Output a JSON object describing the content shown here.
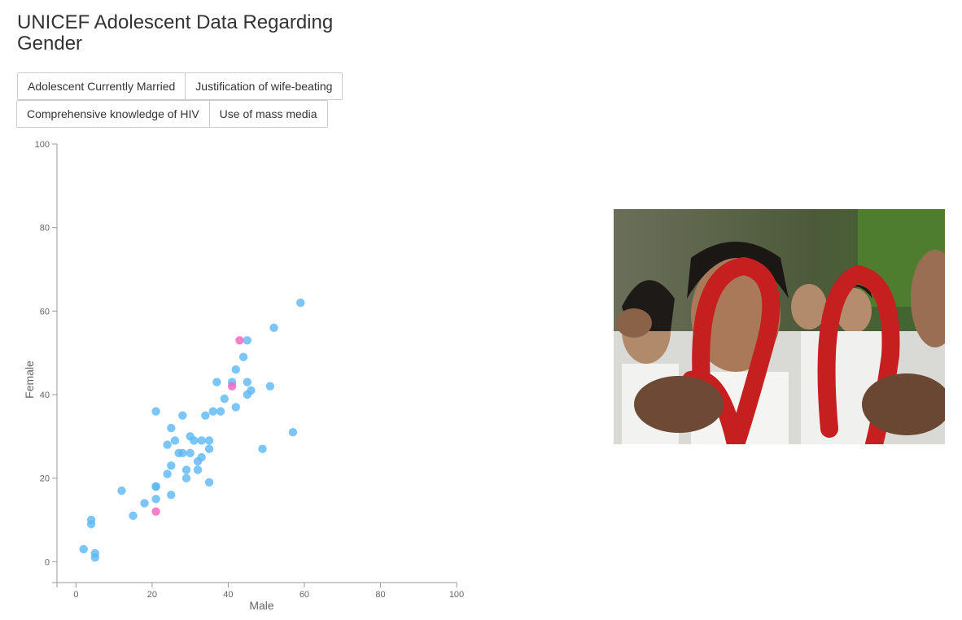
{
  "page": {
    "title": "UNICEF Adolescent Data Regarding Gender"
  },
  "buttons": [
    {
      "label": "Adolescent Currently Married"
    },
    {
      "label": "Justification of wife-beating"
    },
    {
      "label": "Comprehensive knowledge of HIV"
    },
    {
      "label": "Use of mass media"
    }
  ],
  "chart_data": {
    "type": "scatter",
    "xlabel": "Male",
    "ylabel": "Female",
    "xlim": [
      -5,
      100
    ],
    "ylim": [
      -5,
      100
    ],
    "xticks": [
      0,
      20,
      40,
      60,
      80,
      100
    ],
    "yticks": [
      0,
      20,
      40,
      60,
      80,
      100
    ],
    "grid": false,
    "colors": {
      "default": "#5bb8f5",
      "highlight": "#f25fbf",
      "axis": "#999999",
      "tick_text": "#666666"
    },
    "series": [
      {
        "color": "#5bb8f5",
        "points": [
          [
            2,
            3
          ],
          [
            4,
            9
          ],
          [
            4,
            10
          ],
          [
            5,
            2
          ],
          [
            5,
            1
          ],
          [
            12,
            17
          ],
          [
            15,
            11
          ],
          [
            18,
            14
          ],
          [
            21,
            18
          ],
          [
            21,
            18
          ],
          [
            21,
            15
          ],
          [
            21,
            36
          ],
          [
            24,
            28
          ],
          [
            24,
            21
          ],
          [
            25,
            23
          ],
          [
            25,
            32
          ],
          [
            25,
            16
          ],
          [
            26,
            29
          ],
          [
            27,
            26
          ],
          [
            28,
            26
          ],
          [
            28,
            35
          ],
          [
            29,
            22
          ],
          [
            29,
            20
          ],
          [
            30,
            30
          ],
          [
            30,
            26
          ],
          [
            31,
            29
          ],
          [
            32,
            22
          ],
          [
            32,
            24
          ],
          [
            33,
            25
          ],
          [
            33,
            29
          ],
          [
            34,
            35
          ],
          [
            35,
            29
          ],
          [
            35,
            27
          ],
          [
            35,
            19
          ],
          [
            36,
            36
          ],
          [
            37,
            43
          ],
          [
            38,
            36
          ],
          [
            39,
            39
          ],
          [
            41,
            43
          ],
          [
            42,
            46
          ],
          [
            42,
            37
          ],
          [
            44,
            49
          ],
          [
            45,
            53
          ],
          [
            45,
            43
          ],
          [
            45,
            40
          ],
          [
            46,
            41
          ],
          [
            49,
            27
          ],
          [
            51,
            42
          ],
          [
            52,
            56
          ],
          [
            57,
            31
          ],
          [
            59,
            62
          ]
        ]
      },
      {
        "color": "#f25fbf",
        "points": [
          [
            21,
            12
          ],
          [
            41,
            42
          ],
          [
            43,
            53
          ]
        ]
      }
    ]
  },
  "image": {
    "icon": "photo-students-red-ribbons"
  }
}
